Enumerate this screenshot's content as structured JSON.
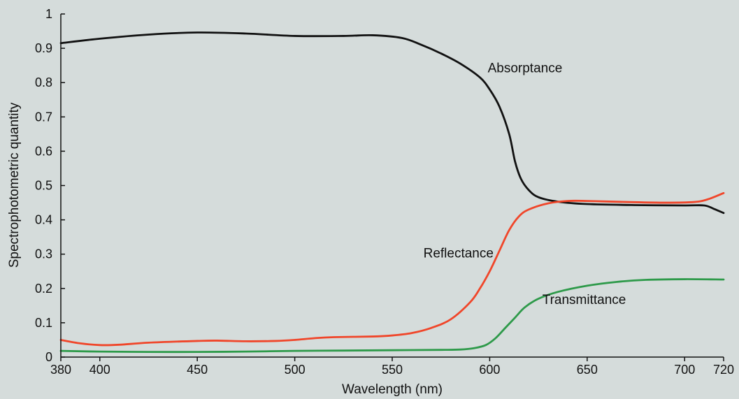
{
  "chart_data": {
    "type": "line",
    "xlabel": "Wavelength (nm)",
    "ylabel": "Spectrophotometric quantity",
    "xlim": [
      380,
      720
    ],
    "ylim": [
      0,
      1
    ],
    "x_ticks": [
      380,
      400,
      450,
      500,
      550,
      600,
      650,
      700,
      720
    ],
    "y_ticks": [
      0,
      0.1,
      0.2,
      0.3,
      0.4,
      0.5,
      0.6,
      0.7,
      0.8,
      0.9,
      1
    ],
    "grid": false,
    "background": "#d5dcdb",
    "series": [
      {
        "name": "Absorptance",
        "color": "#111111",
        "points": [
          [
            380,
            0.915
          ],
          [
            400,
            0.928
          ],
          [
            425,
            0.94
          ],
          [
            450,
            0.946
          ],
          [
            475,
            0.943
          ],
          [
            500,
            0.936
          ],
          [
            525,
            0.936
          ],
          [
            540,
            0.938
          ],
          [
            555,
            0.93
          ],
          [
            565,
            0.91
          ],
          [
            575,
            0.885
          ],
          [
            585,
            0.855
          ],
          [
            595,
            0.815
          ],
          [
            600,
            0.78
          ],
          [
            605,
            0.73
          ],
          [
            610,
            0.65
          ],
          [
            613,
            0.57
          ],
          [
            616,
            0.52
          ],
          [
            620,
            0.487
          ],
          [
            625,
            0.466
          ],
          [
            635,
            0.453
          ],
          [
            650,
            0.446
          ],
          [
            675,
            0.443
          ],
          [
            700,
            0.442
          ],
          [
            710,
            0.442
          ],
          [
            715,
            0.432
          ],
          [
            720,
            0.42
          ]
        ]
      },
      {
        "name": "Reflectance",
        "color": "#f0462a",
        "points": [
          [
            380,
            0.05
          ],
          [
            390,
            0.04
          ],
          [
            400,
            0.035
          ],
          [
            410,
            0.036
          ],
          [
            425,
            0.042
          ],
          [
            450,
            0.047
          ],
          [
            460,
            0.048
          ],
          [
            475,
            0.046
          ],
          [
            490,
            0.047
          ],
          [
            500,
            0.05
          ],
          [
            510,
            0.055
          ],
          [
            520,
            0.058
          ],
          [
            540,
            0.06
          ],
          [
            550,
            0.063
          ],
          [
            560,
            0.07
          ],
          [
            570,
            0.085
          ],
          [
            580,
            0.11
          ],
          [
            590,
            0.16
          ],
          [
            595,
            0.2
          ],
          [
            600,
            0.25
          ],
          [
            605,
            0.31
          ],
          [
            610,
            0.37
          ],
          [
            615,
            0.41
          ],
          [
            620,
            0.43
          ],
          [
            630,
            0.448
          ],
          [
            640,
            0.455
          ],
          [
            650,
            0.455
          ],
          [
            670,
            0.452
          ],
          [
            690,
            0.45
          ],
          [
            705,
            0.452
          ],
          [
            712,
            0.46
          ],
          [
            720,
            0.478
          ]
        ]
      },
      {
        "name": "Transmittance",
        "color": "#2e9a4a",
        "points": [
          [
            380,
            0.018
          ],
          [
            400,
            0.016
          ],
          [
            425,
            0.015
          ],
          [
            450,
            0.015
          ],
          [
            475,
            0.016
          ],
          [
            500,
            0.018
          ],
          [
            525,
            0.019
          ],
          [
            550,
            0.02
          ],
          [
            575,
            0.021
          ],
          [
            585,
            0.022
          ],
          [
            592,
            0.026
          ],
          [
            598,
            0.035
          ],
          [
            603,
            0.055
          ],
          [
            608,
            0.085
          ],
          [
            613,
            0.115
          ],
          [
            618,
            0.145
          ],
          [
            625,
            0.17
          ],
          [
            635,
            0.19
          ],
          [
            650,
            0.208
          ],
          [
            665,
            0.219
          ],
          [
            680,
            0.225
          ],
          [
            700,
            0.227
          ],
          [
            720,
            0.226
          ]
        ]
      }
    ],
    "annotations": [
      {
        "text": "Absorptance",
        "x": 599,
        "y": 0.83
      },
      {
        "text": "Reflectance",
        "x": 566,
        "y": 0.29
      },
      {
        "text": "Transmittance",
        "x": 627,
        "y": 0.155
      }
    ]
  }
}
